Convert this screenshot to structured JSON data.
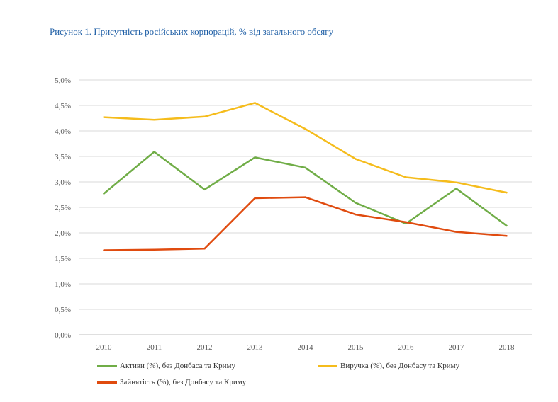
{
  "figure": {
    "title": "Рисунок 1. Присутність російських корпорацій, % від загального обсягу"
  },
  "chart_data": {
    "type": "line",
    "title": "Рисунок 1. Присутність російських корпорацій, % від загального обсягу",
    "xlabel": "",
    "ylabel": "",
    "categories": [
      "2010",
      "2011",
      "2012",
      "2013",
      "2014",
      "2015",
      "2016",
      "2017",
      "2018"
    ],
    "y_ticks": [
      "0,0%",
      "0,5%",
      "1,0%",
      "1,5%",
      "2,0%",
      "2,5%",
      "3,0%",
      "3,5%",
      "4,0%",
      "4,5%",
      "5,0%"
    ],
    "ylim": [
      0,
      5.0
    ],
    "grid": true,
    "legend_position": "bottom",
    "series": [
      {
        "name": "Активи (%), без Донбаса та Криму",
        "color": "#70ad47",
        "values": [
          2.77,
          3.59,
          2.85,
          3.48,
          3.28,
          2.59,
          2.18,
          2.87,
          2.14
        ]
      },
      {
        "name": "Виручка (%), без Донбасу та Криму",
        "color": "#f5bc1c",
        "values": [
          4.27,
          4.22,
          4.28,
          4.55,
          4.04,
          3.45,
          3.09,
          2.99,
          2.79
        ]
      },
      {
        "name": "Зайнятість (%), без Донбасу та Криму",
        "color": "#e04b0f",
        "values": [
          1.66,
          1.67,
          1.69,
          2.68,
          2.7,
          2.36,
          2.21,
          2.02,
          1.94
        ]
      }
    ]
  }
}
